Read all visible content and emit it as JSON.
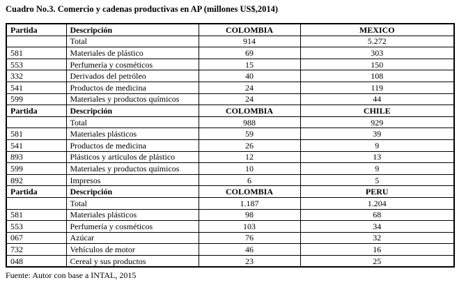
{
  "page": {
    "title": "Cuadro No.3. Comercio y cadenas productivas en AP (millones US$,2014)",
    "source_note": "Fuente: Autor con base a INTAL, 2015"
  },
  "colors": {
    "text": "#000000",
    "border": "#000000",
    "background": "#ffffff"
  },
  "table": {
    "column_semantics": [
      "partida",
      "descripcion",
      "colombia",
      "partner-country"
    ],
    "sections": [
      {
        "headers": [
          "Partida",
          "Descripción",
          "COLOMBIA",
          "MEXICO"
        ],
        "rows": [
          [
            "",
            "Total",
            "914",
            "5.272"
          ],
          [
            "581",
            "Materiales de plástico",
            "69",
            "303"
          ],
          [
            "553",
            "Perfumería y cosméticos",
            "15",
            "150"
          ],
          [
            "332",
            "Derivados del petróleo",
            "40",
            "108"
          ],
          [
            "541",
            "Productos de medicina",
            "24",
            "119"
          ],
          [
            "599",
            "Materiales y productos químicos",
            "24",
            "44"
          ]
        ]
      },
      {
        "headers": [
          "Partida",
          "Descripción",
          "COLOMBIA",
          "CHILE"
        ],
        "rows": [
          [
            "",
            "Total",
            "988",
            "929"
          ],
          [
            "581",
            "Materiales plásticos",
            "59",
            "39"
          ],
          [
            "541",
            "Productos de medicina",
            "26",
            "9"
          ],
          [
            "893",
            "Plásticos y artículos de plástico",
            "12",
            "13"
          ],
          [
            "599",
            "Materiales y productos químicos",
            "10",
            "9"
          ],
          [
            "892",
            "Impresos",
            "6",
            "5"
          ]
        ]
      },
      {
        "headers": [
          "Partida",
          "Descripción",
          "COLOMBIA",
          "PERU"
        ],
        "rows": [
          [
            "",
            "Total",
            "1.187",
            "1.204"
          ],
          [
            "581",
            "Materiales plásticos",
            "98",
            "68"
          ],
          [
            "553",
            "Perfumería y cosméticos",
            "103",
            "34"
          ],
          [
            "067",
            "Azúcar",
            "76",
            "32"
          ],
          [
            "732",
            "Vehículos de motor",
            "46",
            "16"
          ],
          [
            "048",
            "Cereal y sus productos",
            "23",
            "25"
          ]
        ]
      }
    ]
  }
}
